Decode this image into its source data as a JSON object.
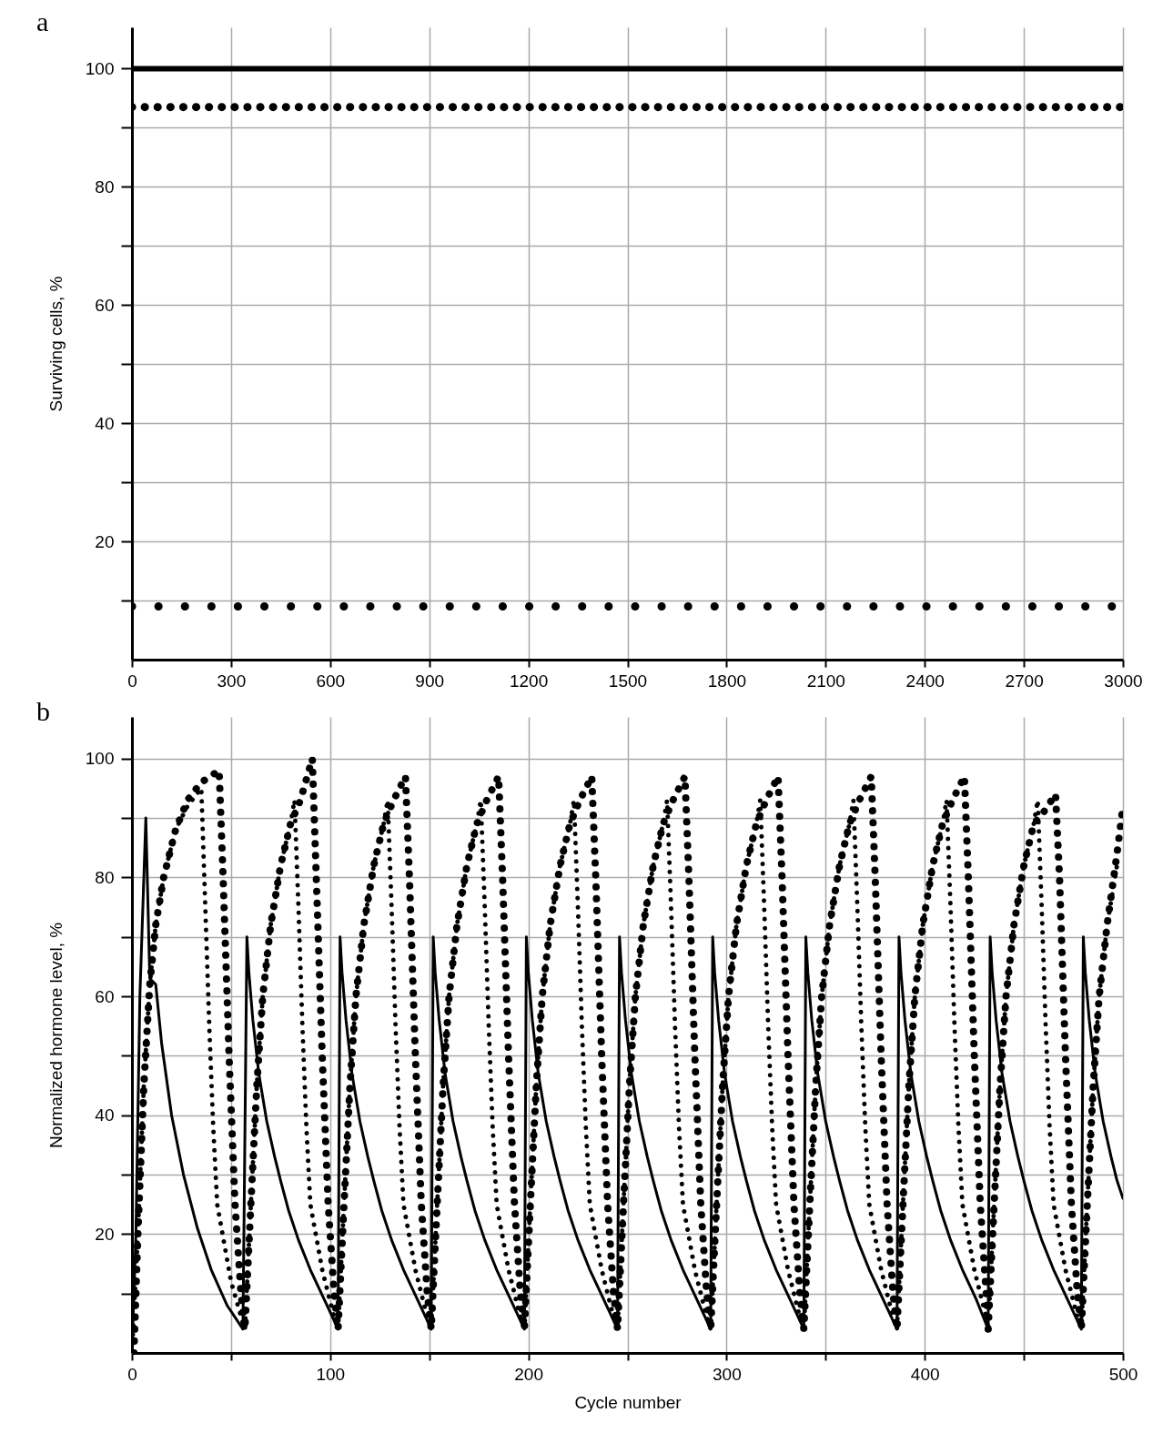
{
  "chart_data": [
    {
      "type": "line",
      "title": "a",
      "ylabel": "Surviving cells, %",
      "xlim": [
        0,
        3000
      ],
      "ylim": [
        0,
        107
      ],
      "xticks": [
        0,
        300,
        600,
        900,
        1200,
        1500,
        1800,
        2100,
        2400,
        2700,
        3000
      ],
      "yticks": [
        {
          "value": 10,
          "label": null
        },
        20,
        {
          "value": 30,
          "label": null
        },
        40,
        {
          "value": 50,
          "label": null
        },
        60,
        {
          "value": 70,
          "label": null
        },
        80,
        {
          "value": 90,
          "label": null
        },
        100
      ],
      "grid": true,
      "marker": "none",
      "series": [
        {
          "color": "#000000",
          "line_style": "solid",
          "x": [
            0,
            3000
          ],
          "values": [
            100,
            100
          ]
        },
        {
          "color": "#000000",
          "line_style": "dotted",
          "x": [
            0,
            3000
          ],
          "values": [
            93.5,
            93.5
          ]
        },
        {
          "color": "#000000",
          "line_style": "dotted",
          "x": [
            0,
            3000
          ],
          "values": [
            9,
            9
          ]
        }
      ]
    },
    {
      "type": "line",
      "title": "b",
      "xlabel": "Cycle number",
      "ylabel": "Normalized hormone level, %",
      "xlim": [
        0,
        500
      ],
      "ylim": [
        0,
        107
      ],
      "xticks": [
        0,
        {
          "value": 50,
          "label": null
        },
        100,
        {
          "value": 150,
          "label": null
        },
        200,
        {
          "value": 250,
          "label": null
        },
        300,
        {
          "value": 350,
          "label": null
        },
        400,
        {
          "value": 450,
          "label": null
        },
        500
      ],
      "yticks": [
        {
          "value": 10,
          "label": null
        },
        20,
        {
          "value": 30,
          "label": null
        },
        40,
        {
          "value": 50,
          "label": null
        },
        60,
        {
          "value": 70,
          "label": null
        },
        80,
        {
          "value": 90,
          "label": null
        },
        100
      ],
      "grid": true,
      "marker": "none",
      "series": [
        {
          "color": "#000000",
          "line_style": "solid",
          "x": [
            0,
            2,
            4,
            7,
            9,
            12,
            15,
            20,
            26,
            33,
            40,
            48,
            56,
            58,
            59,
            61,
            64,
            68,
            72,
            75,
            79,
            84,
            90,
            97,
            104,
            105,
            106,
            108,
            111,
            115,
            119,
            122,
            126,
            131,
            137,
            144,
            151,
            152,
            153,
            155,
            158,
            162,
            166,
            169,
            173,
            178,
            184,
            191,
            198,
            199,
            200,
            202,
            205,
            209,
            213,
            216,
            220,
            225,
            231,
            238,
            245,
            246,
            247,
            249,
            252,
            256,
            260,
            263,
            267,
            272,
            278,
            285,
            292,
            293,
            294,
            296,
            299,
            303,
            307,
            310,
            314,
            319,
            325,
            332,
            339,
            340,
            341,
            343,
            346,
            350,
            354,
            357,
            361,
            366,
            372,
            379,
            386,
            387,
            388,
            390,
            393,
            397,
            401,
            404,
            408,
            413,
            419,
            426,
            432,
            433,
            434,
            436,
            439,
            443,
            447,
            450,
            454,
            459,
            465,
            472,
            479,
            480,
            481,
            483,
            486,
            490,
            494,
            497,
            500
          ],
          "values": [
            0,
            20,
            60,
            90,
            63,
            62,
            52,
            40,
            30,
            21,
            14,
            8,
            4,
            70,
            64,
            56,
            47,
            39,
            33,
            29,
            24,
            19,
            14,
            9,
            4,
            70,
            64,
            56,
            47,
            39,
            33,
            29,
            24,
            19,
            14,
            9,
            4,
            70,
            64,
            56,
            47,
            39,
            33,
            29,
            24,
            19,
            14,
            9,
            4,
            70,
            64,
            56,
            47,
            39,
            33,
            29,
            24,
            19,
            14,
            9,
            4,
            70,
            64,
            56,
            47,
            39,
            33,
            29,
            24,
            19,
            14,
            9,
            4,
            70,
            64,
            56,
            47,
            39,
            33,
            29,
            24,
            19,
            14,
            9,
            4,
            70,
            64,
            56,
            47,
            39,
            33,
            29,
            24,
            19,
            14,
            9,
            4,
            70,
            64,
            56,
            47,
            39,
            33,
            29,
            24,
            19,
            14,
            9,
            4,
            70,
            64,
            56,
            47,
            39,
            33,
            29,
            24,
            19,
            14,
            9,
            4,
            70,
            64,
            56,
            47,
            39,
            33,
            29,
            26
          ]
        },
        {
          "color": "#000000",
          "line_style": "dotted",
          "x": [
            1,
            3,
            6,
            9,
            12,
            16,
            22,
            28,
            35,
            44,
            46,
            49,
            52,
            55,
            57,
            60,
            63,
            66,
            70,
            75,
            80,
            85,
            91,
            93,
            96,
            99,
            102,
            104,
            107,
            110,
            113,
            117,
            122,
            127,
            132,
            138,
            140,
            143,
            146,
            149,
            151,
            154,
            157,
            160,
            164,
            169,
            174,
            179,
            185,
            187,
            190,
            193,
            196,
            198,
            201,
            204,
            207,
            211,
            216,
            221,
            226,
            232,
            234,
            237,
            240,
            243,
            245,
            248,
            251,
            254,
            258,
            263,
            268,
            273,
            279,
            281,
            284,
            287,
            290,
            292,
            295,
            298,
            301,
            305,
            310,
            315,
            320,
            326,
            328,
            331,
            334,
            337,
            339,
            342,
            345,
            348,
            352,
            357,
            362,
            367,
            373,
            375,
            378,
            381,
            384,
            386,
            389,
            392,
            395,
            399,
            404,
            409,
            414,
            420,
            422,
            425,
            428,
            431,
            432,
            435,
            438,
            441,
            445,
            450,
            455,
            460,
            466,
            468,
            471,
            474,
            477,
            479,
            482,
            485,
            488,
            492,
            497,
            500
          ],
          "values": [
            0,
            20,
            45,
            62,
            72,
            80,
            88,
            93,
            96,
            98,
            80,
            50,
            25,
            10,
            4,
            25,
            45,
            60,
            72,
            82,
            89,
            93,
            100,
            80,
            50,
            25,
            10,
            4,
            25,
            45,
            60,
            72,
            82,
            89,
            93,
            97,
            80,
            50,
            25,
            10,
            4,
            25,
            45,
            60,
            72,
            82,
            89,
            93,
            97,
            80,
            50,
            25,
            10,
            4,
            25,
            45,
            60,
            72,
            82,
            89,
            93,
            97,
            80,
            50,
            25,
            10,
            4,
            25,
            45,
            60,
            72,
            82,
            89,
            93,
            97,
            80,
            50,
            25,
            10,
            4,
            25,
            45,
            60,
            72,
            82,
            89,
            93,
            97,
            80,
            50,
            25,
            10,
            4,
            25,
            45,
            60,
            72,
            82,
            89,
            93,
            97,
            80,
            50,
            25,
            10,
            4,
            25,
            45,
            60,
            72,
            82,
            89,
            93,
            97,
            80,
            50,
            25,
            10,
            4,
            25,
            45,
            60,
            72,
            82,
            89,
            91,
            94,
            80,
            50,
            25,
            10,
            4,
            25,
            45,
            60,
            72,
            84,
            92
          ]
        },
        {
          "color": "#000000",
          "line_style": "dotted",
          "x": [
            0,
            3,
            6,
            9,
            12,
            16,
            22,
            28,
            35,
            37,
            39,
            41,
            43,
            50,
            56,
            57,
            60,
            63,
            66,
            70,
            75,
            80,
            82,
            84,
            86,
            88,
            90,
            96,
            102,
            104,
            107,
            110,
            113,
            117,
            122,
            127,
            129,
            131,
            133,
            135,
            137,
            143,
            149,
            151,
            154,
            157,
            160,
            164,
            169,
            174,
            176,
            178,
            180,
            182,
            184,
            190,
            196,
            198,
            201,
            204,
            207,
            211,
            216,
            221,
            223,
            225,
            227,
            229,
            231,
            237,
            243,
            245,
            248,
            251,
            254,
            258,
            263,
            268,
            270,
            272,
            274,
            276,
            278,
            284,
            290,
            292,
            295,
            298,
            301,
            305,
            310,
            315,
            317,
            319,
            321,
            323,
            325,
            331,
            337,
            339,
            342,
            345,
            348,
            352,
            357,
            362,
            364,
            366,
            368,
            370,
            372,
            378,
            384,
            386,
            389,
            392,
            395,
            399,
            404,
            409,
            411,
            413,
            415,
            417,
            419,
            425,
            431,
            432,
            435,
            438,
            441,
            445,
            450,
            455,
            457,
            459,
            461,
            463,
            465,
            471,
            477,
            479,
            482,
            485,
            488,
            492,
            497
          ],
          "values": [
            0,
            20,
            45,
            62,
            72,
            80,
            88,
            92,
            95,
            75,
            55,
            38,
            25,
            12,
            5,
            4,
            25,
            45,
            60,
            72,
            82,
            89,
            93,
            75,
            55,
            38,
            25,
            14,
            6,
            4,
            25,
            45,
            60,
            72,
            82,
            89,
            93,
            75,
            55,
            38,
            25,
            14,
            6,
            4,
            25,
            45,
            60,
            72,
            82,
            89,
            93,
            75,
            55,
            38,
            25,
            14,
            6,
            4,
            25,
            45,
            60,
            72,
            82,
            89,
            93,
            75,
            55,
            38,
            25,
            14,
            6,
            4,
            25,
            45,
            60,
            72,
            82,
            89,
            93,
            75,
            55,
            38,
            25,
            14,
            6,
            4,
            25,
            45,
            60,
            72,
            82,
            89,
            93,
            75,
            55,
            38,
            25,
            14,
            6,
            4,
            25,
            45,
            60,
            72,
            82,
            89,
            93,
            75,
            55,
            38,
            25,
            14,
            6,
            4,
            25,
            45,
            60,
            72,
            82,
            89,
            93,
            75,
            55,
            38,
            25,
            14,
            6,
            4,
            25,
            45,
            60,
            72,
            82,
            89,
            93,
            75,
            55,
            38,
            25,
            14,
            6,
            4,
            25,
            45,
            60,
            72,
            82
          ]
        }
      ]
    }
  ]
}
